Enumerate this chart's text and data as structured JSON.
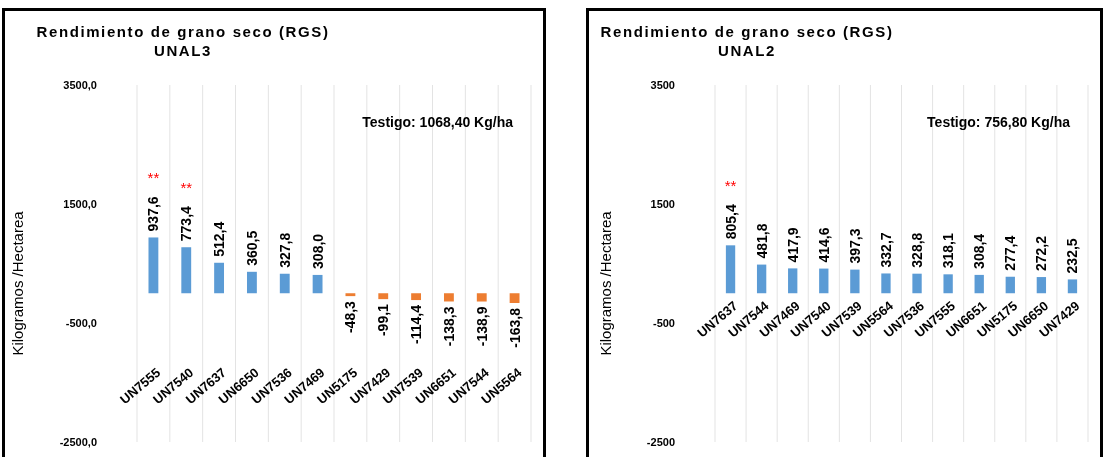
{
  "chart_data": [
    {
      "type": "bar",
      "title": "Rendimiento de grano seco (RGS)",
      "subtitle": "UNAL3",
      "ylabel": "Kilogramos /Hectarea",
      "categories": [
        "UN7555",
        "UN7540",
        "UN7637",
        "UN6650",
        "UN7536",
        "UN7469",
        "UN5175",
        "UN7429",
        "UN7539",
        "UN6651",
        "UN7544",
        "UN5564"
      ],
      "values": [
        937.6,
        773.4,
        512.4,
        360.5,
        327.8,
        308.0,
        -48.3,
        -99.1,
        -114.4,
        -138.3,
        -138.9,
        -163.8
      ],
      "value_labels": [
        "937,6",
        "773,4",
        "512,4",
        "360,5",
        "327,8",
        "308,0",
        "-48,3",
        "-99,1",
        "-114,4",
        "-138,3",
        "-138,9",
        "-163,8"
      ],
      "colors": [
        "#5b9bd5",
        "#5b9bd5",
        "#5b9bd5",
        "#5b9bd5",
        "#5b9bd5",
        "#5b9bd5",
        "#ed7d31",
        "#ed7d31",
        "#ed7d31",
        "#ed7d31",
        "#ed7d31",
        "#ed7d31"
      ],
      "ylim": [
        -2500,
        3500
      ],
      "yticks": [
        {
          "value": -2500,
          "label": "-2500,0"
        },
        {
          "value": -500,
          "label": "-500,0"
        },
        {
          "value": 1500,
          "label": "1500,0"
        },
        {
          "value": 3500,
          "label": "3500,0"
        }
      ],
      "grid": "x",
      "annotations": [
        "Testigo: 1068,40 Kg/ha",
        "**",
        "**"
      ]
    },
    {
      "type": "bar",
      "title": "Rendimiento de grano seco (RGS)",
      "subtitle": "UNAL2",
      "ylabel": "Kilogramos /Hectarea",
      "categories": [
        "UN7637",
        "UN7544",
        "UN7469",
        "UN7540",
        "UN7539",
        "UN5564",
        "UN7536",
        "UN7555",
        "UN6651",
        "UN5175",
        "UN6650",
        "UN7429"
      ],
      "values": [
        805.4,
        481.8,
        417.9,
        414.6,
        397.3,
        332.7,
        328.8,
        318.1,
        308.4,
        277.4,
        272.2,
        232.5
      ],
      "value_labels": [
        "805,4",
        "481,8",
        "417,9",
        "414,6",
        "397,3",
        "332,7",
        "328,8",
        "318,1",
        "308,4",
        "277,4",
        "272,2",
        "232,5"
      ],
      "colors": [
        "#5b9bd5",
        "#5b9bd5",
        "#5b9bd5",
        "#5b9bd5",
        "#5b9bd5",
        "#5b9bd5",
        "#5b9bd5",
        "#5b9bd5",
        "#5b9bd5",
        "#5b9bd5",
        "#5b9bd5",
        "#5b9bd5"
      ],
      "ylim": [
        -2500,
        3500
      ],
      "yticks": [
        -2500,
        -500,
        1500,
        3500
      ],
      "grid": "x",
      "annotations": [
        "Testigo: 756,80 Kg/ha",
        "**"
      ]
    }
  ]
}
